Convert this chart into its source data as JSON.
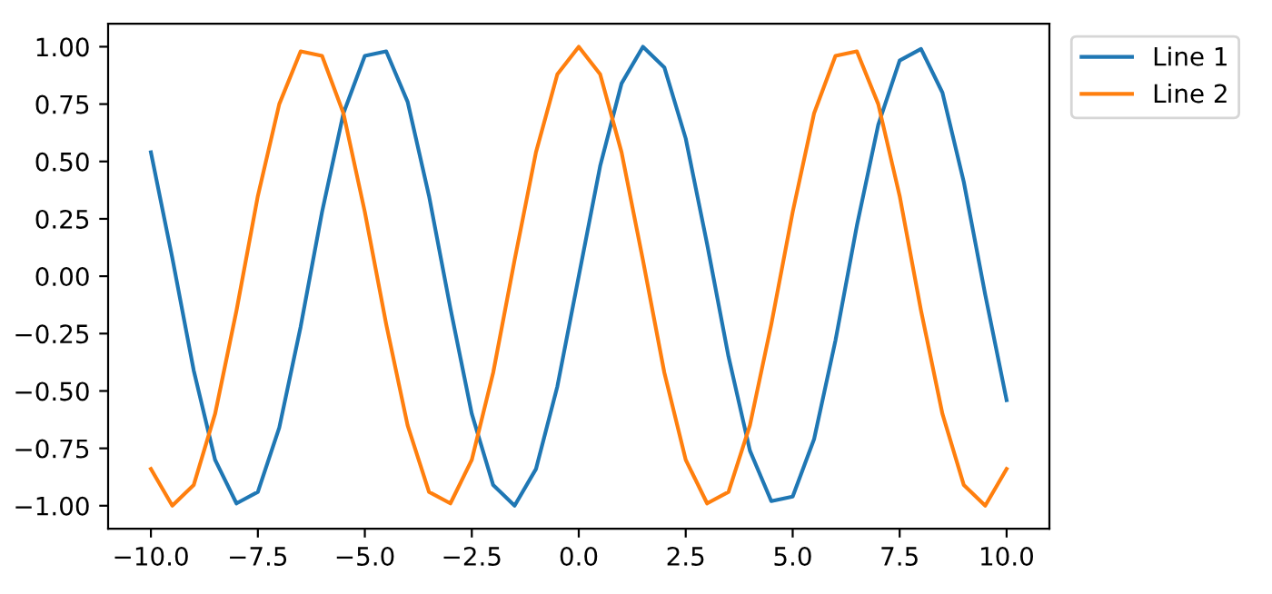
{
  "chart_data": {
    "type": "line",
    "x": [
      -10,
      -9.5,
      -9,
      -8.5,
      -8,
      -7.5,
      -7,
      -6.5,
      -6,
      -5.5,
      -5,
      -4.5,
      -4,
      -3.5,
      -3,
      -2.5,
      -2,
      -1.5,
      -1,
      -0.5,
      0,
      0.5,
      1,
      1.5,
      2,
      2.5,
      3,
      3.5,
      4,
      4.5,
      5,
      5.5,
      6,
      6.5,
      7,
      7.5,
      8,
      8.5,
      9,
      9.5,
      10
    ],
    "series": [
      {
        "name": "Line 1",
        "color": "#1f77b4",
        "values": [
          0.54,
          0.08,
          -0.41,
          -0.8,
          -0.99,
          -0.94,
          -0.66,
          -0.22,
          0.28,
          0.71,
          0.96,
          0.98,
          0.76,
          0.35,
          -0.14,
          -0.6,
          -0.91,
          -1.0,
          -0.84,
          -0.48,
          0,
          0.48,
          0.84,
          1.0,
          0.91,
          0.6,
          0.14,
          -0.35,
          -0.76,
          -0.98,
          -0.96,
          -0.71,
          -0.28,
          0.22,
          0.66,
          0.94,
          0.99,
          0.8,
          0.41,
          -0.08,
          -0.54
        ]
      },
      {
        "name": "Line 2",
        "color": "#ff7f0e",
        "values": [
          -0.84,
          -1.0,
          -0.91,
          -0.6,
          -0.15,
          0.35,
          0.75,
          0.98,
          0.96,
          0.71,
          0.28,
          -0.21,
          -0.65,
          -0.94,
          -0.99,
          -0.8,
          -0.42,
          0.07,
          0.54,
          0.88,
          1.0,
          0.88,
          0.54,
          0.07,
          -0.42,
          -0.8,
          -0.99,
          -0.94,
          -0.65,
          -0.21,
          0.28,
          0.71,
          0.96,
          0.98,
          0.75,
          0.35,
          -0.15,
          -0.6,
          -0.91,
          -1.0,
          -0.84
        ]
      }
    ],
    "xlim": [
      -11,
      11
    ],
    "ylim": [
      -1.1,
      1.1
    ],
    "xticks": [
      {
        "value": -10,
        "label": "−10.0"
      },
      {
        "value": -7.5,
        "label": "−7.5"
      },
      {
        "value": -5,
        "label": "−5.0"
      },
      {
        "value": -2.5,
        "label": "−2.5"
      },
      {
        "value": 0,
        "label": "0.0"
      },
      {
        "value": 2.5,
        "label": "2.5"
      },
      {
        "value": 5,
        "label": "5.0"
      },
      {
        "value": 7.5,
        "label": "7.5"
      },
      {
        "value": 10,
        "label": "10.0"
      }
    ],
    "yticks": [
      {
        "value": -1,
        "label": "−1.00"
      },
      {
        "value": -0.75,
        "label": "−0.75"
      },
      {
        "value": -0.5,
        "label": "−0.50"
      },
      {
        "value": -0.25,
        "label": "−0.25"
      },
      {
        "value": 0,
        "label": "0.00"
      },
      {
        "value": 0.25,
        "label": "0.25"
      },
      {
        "value": 0.5,
        "label": "0.50"
      },
      {
        "value": 0.75,
        "label": "0.75"
      },
      {
        "value": 1,
        "label": "1.00"
      }
    ],
    "legend": "top right",
    "grid": false,
    "marker": "none",
    "line_style": "solid"
  }
}
